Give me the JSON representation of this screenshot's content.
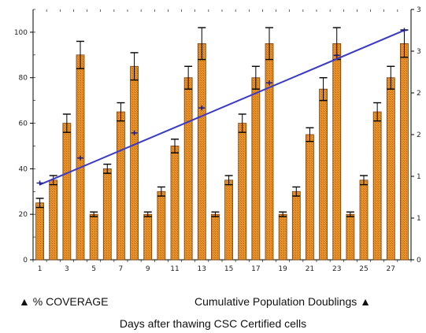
{
  "chart_data": {
    "type": "bar",
    "x": [
      1,
      2,
      3,
      4,
      5,
      6,
      7,
      8,
      9,
      10,
      11,
      12,
      13,
      14,
      15,
      16,
      17,
      18,
      19,
      20,
      21,
      22,
      23,
      24,
      25,
      26,
      27,
      28
    ],
    "x_tick_labels": [
      "1",
      "3",
      "5",
      "7",
      "9",
      "11",
      "13",
      "15",
      "17",
      "19",
      "21",
      "23",
      "25",
      "27"
    ],
    "series": [
      {
        "axis": "left",
        "kind": "bar",
        "color": "#e8922a",
        "values": [
          25,
          35,
          60,
          90,
          20,
          40,
          65,
          85,
          20,
          30,
          50,
          80,
          95,
          20,
          35,
          60,
          80,
          95,
          20,
          30,
          55,
          75,
          95,
          20,
          35,
          65,
          80,
          95
        ],
        "errors": [
          2,
          2,
          4,
          6,
          1,
          2,
          4,
          6,
          1,
          2,
          3,
          5,
          7,
          1,
          2,
          4,
          5,
          7,
          1,
          2,
          3,
          5,
          7,
          1,
          2,
          4,
          5,
          6
        ]
      },
      {
        "axis": "right",
        "kind": "line",
        "color": "#3a3ac8",
        "x": [
          1,
          28
        ],
        "values": [
          0.9,
          2.75
        ]
      }
    ],
    "marker_points": [
      {
        "x": 1,
        "y": 0.92
      },
      {
        "x": 4,
        "y": 1.22
      },
      {
        "x": 8,
        "y": 1.52
      },
      {
        "x": 13,
        "y": 1.82
      },
      {
        "x": 18,
        "y": 2.12
      },
      {
        "x": 23,
        "y": 2.45
      },
      {
        "x": 28,
        "y": 2.75
      }
    ],
    "ylim_left": [
      0,
      110
    ],
    "yticks_left": [
      0,
      20,
      40,
      60,
      80,
      100
    ],
    "ylim_right": [
      0,
      3
    ],
    "yticks_right": [
      0,
      0.5,
      1,
      1.5,
      2,
      2.5,
      3
    ],
    "ytick_labels_right": [
      "0",
      "1",
      "1",
      "2",
      "2",
      "3",
      "3"
    ],
    "legend_left": "▲ % COVERAGE",
    "legend_right": "Cumulative Population Doublings ▲",
    "xlabel": "Days after thawing CSC Certified cells"
  }
}
